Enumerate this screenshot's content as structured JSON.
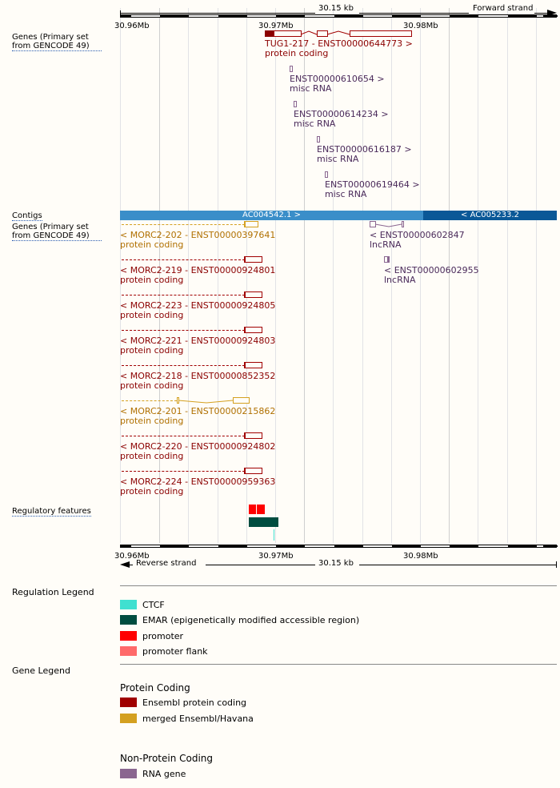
{
  "scale": {
    "length": "30.15 kb",
    "forward": "Forward strand",
    "reverse": "Reverse strand",
    "ticks": [
      "30.96Mb",
      "30.97Mb",
      "30.98Mb"
    ]
  },
  "tracks": {
    "genes_fwd": "Genes (Primary set from GENCODE 49)",
    "contigs": "Contigs",
    "genes_rev": "Genes (Primary set from GENCODE 49)",
    "regulatory": "Regulatory features"
  },
  "contigs": [
    {
      "label": "AC004542.1 >",
      "color": "#3a8ec9"
    },
    {
      "label": "< AC005233.2",
      "color": "#0a5897"
    }
  ],
  "forward_genes": [
    {
      "name": "TUG1-217 - ENST00000644773 >",
      "type": "protein coding"
    },
    {
      "name": "ENST00000610654 >",
      "type": "misc RNA"
    },
    {
      "name": "ENST00000614234 >",
      "type": "misc RNA"
    },
    {
      "name": "ENST00000616187 >",
      "type": "misc RNA"
    },
    {
      "name": "ENST00000619464 >",
      "type": "misc RNA"
    }
  ],
  "reverse_genes": [
    {
      "name": "< MORC2-202 - ENST00000397641",
      "type": "protein coding"
    },
    {
      "name": "< MORC2-219 - ENST00000924801",
      "type": "protein coding"
    },
    {
      "name": "< MORC2-223 - ENST00000924805",
      "type": "protein coding"
    },
    {
      "name": "< MORC2-221 - ENST00000924803",
      "type": "protein coding"
    },
    {
      "name": "< MORC2-218 - ENST00000852352",
      "type": "protein coding"
    },
    {
      "name": "< MORC2-201 - ENST00000215862",
      "type": "protein coding"
    },
    {
      "name": "< MORC2-220 - ENST00000924802",
      "type": "protein coding"
    },
    {
      "name": "< MORC2-224 - ENST00000959363",
      "type": "protein coding"
    },
    {
      "name": "< ENST00000602847",
      "type": "lncRNA"
    },
    {
      "name": "< ENST00000602955",
      "type": "lncRNA"
    }
  ],
  "colors": {
    "protein": "#8b0000",
    "merged": "#b07a00",
    "rna": "#4a2a5a",
    "rna_gene": "#8a6690",
    "ctcf": "#40e0d0",
    "emar": "#004d40",
    "promoter": "#ff0000",
    "flank": "#ff6a6a",
    "ens_pc": "#a00000",
    "merged_swatch": "#d4a020"
  },
  "regulation_legend": {
    "title": "Regulation Legend",
    "items": [
      "CTCF",
      "EMAR (epigenetically modified accessible region)",
      "promoter",
      "promoter flank"
    ]
  },
  "gene_legend": {
    "title": "Gene Legend",
    "protein_heading": "Protein Coding",
    "protein_items": [
      "Ensembl protein coding",
      "merged Ensembl/Havana"
    ],
    "nonprotein_heading": "Non-Protein Coding",
    "nonprotein_items": [
      "RNA gene"
    ]
  }
}
